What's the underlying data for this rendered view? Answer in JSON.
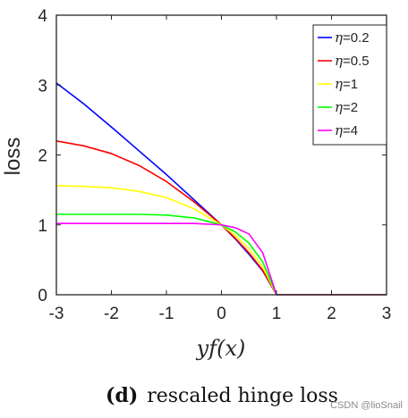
{
  "chart_data": {
    "type": "line",
    "xlabel": "yf(x)",
    "ylabel": "loss",
    "xlim": [
      -3,
      3
    ],
    "ylim": [
      0,
      4
    ],
    "xticks": [
      "-3",
      "-2",
      "-1",
      "0",
      "1",
      "2",
      "3"
    ],
    "yticks": [
      "0",
      "1",
      "2",
      "3",
      "4"
    ],
    "legend_position": "top-right",
    "grid": false,
    "series": [
      {
        "name": "η=0.2",
        "legend_symbol": "η",
        "legend_value": "=0.2",
        "color": "#0000ff",
        "x": [
          -3,
          -2.5,
          -2,
          -1.5,
          -1,
          -0.5,
          0,
          0.25,
          0.5,
          0.75,
          1,
          1.5,
          2,
          2.5,
          3
        ],
        "y": [
          3.03,
          2.73,
          2.4,
          2.06,
          1.72,
          1.36,
          1.0,
          0.8,
          0.58,
          0.34,
          0.0,
          0.0,
          0.0,
          0.0,
          0.0
        ]
      },
      {
        "name": "η=0.5",
        "legend_symbol": "η",
        "legend_value": "=0.5",
        "color": "#ff0000",
        "x": [
          -3,
          -2.5,
          -2,
          -1.5,
          -1,
          -0.5,
          0,
          0.25,
          0.5,
          0.75,
          1,
          1.5,
          2,
          2.5,
          3
        ],
        "y": [
          2.2,
          2.13,
          2.02,
          1.85,
          1.62,
          1.33,
          1.0,
          0.81,
          0.6,
          0.35,
          0.0,
          0.0,
          0.0,
          0.0,
          0.0
        ]
      },
      {
        "name": "η=1",
        "legend_symbol": "η",
        "legend_value": "=1",
        "color": "#ffff00",
        "x": [
          -3,
          -2.5,
          -2,
          -1.5,
          -1,
          -0.5,
          0,
          0.25,
          0.5,
          0.75,
          1,
          1.5,
          2,
          2.5,
          3
        ],
        "y": [
          1.56,
          1.55,
          1.53,
          1.48,
          1.39,
          1.23,
          1.0,
          0.85,
          0.66,
          0.4,
          0.0,
          0.0,
          0.0,
          0.0,
          0.0
        ]
      },
      {
        "name": "η=2",
        "legend_symbol": "η",
        "legend_value": "=2",
        "color": "#00ff00",
        "x": [
          -3,
          -2.5,
          -2,
          -1.5,
          -1,
          -0.5,
          0,
          0.25,
          0.5,
          0.75,
          1,
          1.5,
          2,
          2.5,
          3
        ],
        "y": [
          1.15,
          1.15,
          1.15,
          1.15,
          1.14,
          1.1,
          1.0,
          0.9,
          0.74,
          0.47,
          0.0,
          0.0,
          0.0,
          0.0,
          0.0
        ]
      },
      {
        "name": "η=4",
        "legend_symbol": "η",
        "legend_value": "=4",
        "color": "#ff00ff",
        "x": [
          -3,
          -2.5,
          -2,
          -1.5,
          -1,
          -0.5,
          0,
          0.25,
          0.5,
          0.75,
          1,
          1.5,
          2,
          2.5,
          3
        ],
        "y": [
          1.02,
          1.02,
          1.02,
          1.02,
          1.02,
          1.02,
          1.0,
          0.96,
          0.87,
          0.6,
          0.0,
          0.0,
          0.0,
          0.0,
          0.0
        ]
      }
    ]
  },
  "caption": {
    "label": "(d)",
    "text": "rescaled hinge loss"
  },
  "watermark": "CSDN @lioSnail"
}
